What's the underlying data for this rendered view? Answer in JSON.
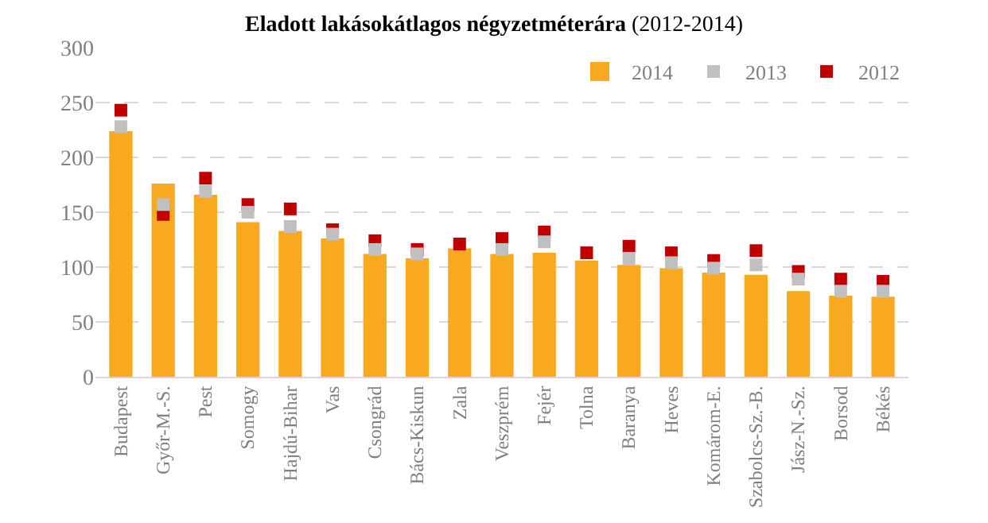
{
  "chart_data": {
    "type": "bar",
    "title": "Eladott lakásokátlagos négyzetméterára",
    "subtitle": "(2012-2014)",
    "categories": [
      "Budapest",
      "Győr-M.-S.",
      "Pest",
      "Somogy",
      "Hajdú-Bihar",
      "Vas",
      "Csongrád",
      "Bács-Kiskun",
      "Zala",
      "Veszprém",
      "Fejér",
      "Tolna",
      "Baranya",
      "Heves",
      "Komárom-E.",
      "Szabolcs-Sz.-B.",
      "Jász-N.-Sz.",
      "Borsod",
      "Békés"
    ],
    "series": [
      {
        "name": "2014",
        "color": "#f9a91f",
        "values": [
          224,
          176,
          166,
          141,
          133,
          126,
          112,
          108,
          117,
          112,
          113,
          106,
          102,
          99,
          95,
          93,
          78,
          74,
          73
        ]
      },
      {
        "name": "2013",
        "type": "scatter",
        "marker": "square",
        "color": "#c0c0c0",
        "values": [
          228,
          157,
          169,
          150,
          137,
          130,
          116,
          112,
          null,
          116,
          123,
          null,
          108,
          104,
          99,
          102,
          89,
          78,
          78
        ]
      },
      {
        "name": "2012",
        "type": "scatter",
        "marker": "square",
        "color": "#c00000",
        "values": [
          243,
          148,
          181,
          157,
          153,
          134,
          124,
          116,
          121,
          126,
          132,
          113,
          119,
          113,
          106,
          115,
          96,
          89,
          87
        ]
      }
    ],
    "ylim": [
      0,
      300
    ],
    "yticks": [
      0,
      50,
      100,
      150,
      200,
      250,
      300
    ],
    "grid": "y",
    "legend": "top right"
  }
}
